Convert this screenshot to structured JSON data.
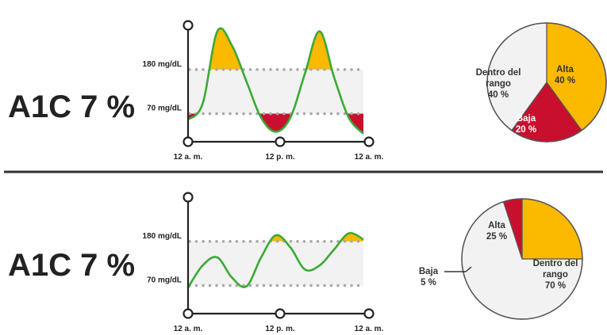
{
  "colors": {
    "high": "#FBB900",
    "low": "#C8102E",
    "range": "#F2F2F2",
    "line": "#3AAA35",
    "axis": "#222222",
    "dots": "#A9A9A9",
    "divider": "#333333"
  },
  "chart_data": [
    {
      "type": "line",
      "a1c_label": "A1C 7 %",
      "y_threshold_labels": [
        "180 mg/dL",
        "70 mg/dL"
      ],
      "thresholds": {
        "high": 180,
        "low": 70
      },
      "x_tick_labels": [
        "12 a. m.",
        "12 p. m.",
        "12 a. m."
      ],
      "x": [
        0,
        2,
        4,
        6,
        8,
        10,
        12,
        14,
        16,
        18,
        20,
        22,
        24
      ],
      "glucose": [
        55,
        95,
        275,
        240,
        150,
        60,
        25,
        60,
        170,
        275,
        160,
        60,
        20
      ],
      "ylim": [
        0,
        290
      ],
      "pie": {
        "slices": [
          {
            "key": "range",
            "label": "Dentro del rango",
            "value": 40,
            "value_label": "40 %"
          },
          {
            "key": "high",
            "label": "Alta",
            "value": 40,
            "value_label": "40 %"
          },
          {
            "key": "low",
            "label": "Baja",
            "value": 20,
            "value_label": "20 %"
          }
        ]
      }
    },
    {
      "type": "line",
      "a1c_label": "A1C 7 %",
      "y_threshold_labels": [
        "180 mg/dL",
        "70 mg/dL"
      ],
      "thresholds": {
        "high": 180,
        "low": 70
      },
      "x_tick_labels": [
        "12 a. m.",
        "12 p. m.",
        "12 a. m."
      ],
      "x": [
        0,
        2,
        4,
        6,
        8,
        10,
        12,
        14,
        16,
        18,
        20,
        22,
        24
      ],
      "glucose": [
        65,
        120,
        140,
        90,
        68,
        140,
        195,
        165,
        110,
        120,
        160,
        200,
        185
      ],
      "ylim": [
        0,
        290
      ],
      "pie": {
        "slices": [
          {
            "key": "high",
            "label": "Alta",
            "value": 25,
            "value_label": "25 %"
          },
          {
            "key": "range",
            "label": "Dentro del rango",
            "value": 70,
            "value_label": "70 %"
          },
          {
            "key": "low",
            "label": "Baja",
            "value": 5,
            "value_label": "5 %"
          }
        ]
      }
    }
  ]
}
